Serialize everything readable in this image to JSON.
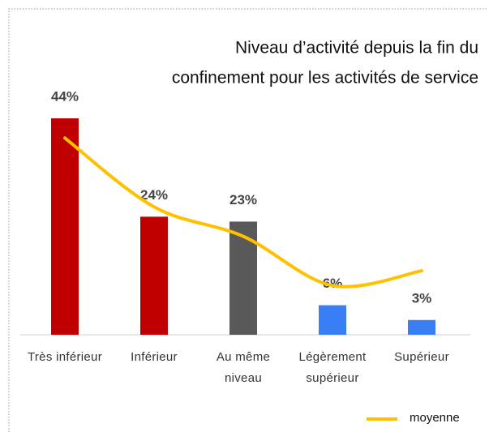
{
  "chart_data": {
    "type": "bar",
    "title": [
      "Niveau d’activité depuis la fin du",
      "confinement pour les activités de service"
    ],
    "categories": [
      "Très inférieur",
      "Inférieur",
      "Au même niveau",
      "Légèrement supérieur",
      "Supérieur"
    ],
    "values": [
      44,
      24,
      23,
      6,
      3
    ],
    "value_labels": [
      "44%",
      "24%",
      "23%",
      "6%",
      "3%"
    ],
    "colors": [
      "#c00000",
      "#c00000",
      "#595959",
      "#3a7ef5",
      "#3a7ef5"
    ],
    "series": [
      {
        "name": "moyenne",
        "color": "#ffc000",
        "values": [
          40,
          26,
          20,
          10,
          13
        ]
      }
    ]
  }
}
